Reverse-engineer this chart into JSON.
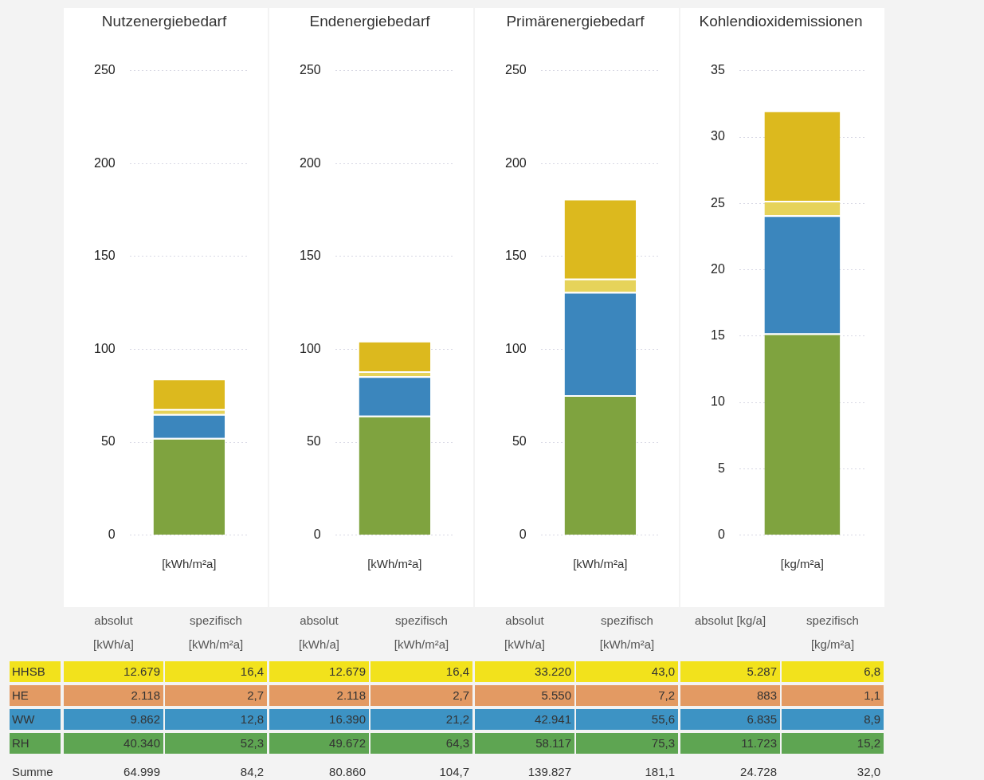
{
  "chart_data": [
    {
      "type": "bar",
      "title": "Nutzenergiebedarf",
      "xlabel": "[kWh/m²a]",
      "categories": [
        null
      ],
      "stacked": true,
      "grid": "y",
      "ylim": [
        0,
        250
      ],
      "yticks": [
        0,
        50,
        100,
        150,
        200,
        250
      ],
      "series": [
        {
          "color": "#7fa33f",
          "values": [
            52.3
          ]
        },
        {
          "color": "#3b86bd",
          "values": [
            12.8
          ]
        },
        {
          "color": "#e6d35a",
          "values": [
            2.7
          ]
        },
        {
          "color": "#dcb91e",
          "values": [
            16.4
          ]
        }
      ]
    },
    {
      "type": "bar",
      "title": "Endenergiebedarf",
      "xlabel": "[kWh/m²a]",
      "categories": [
        null
      ],
      "stacked": true,
      "grid": "y",
      "ylim": [
        0,
        250
      ],
      "yticks": [
        0,
        50,
        100,
        150,
        200,
        250
      ],
      "series": [
        {
          "color": "#7fa33f",
          "values": [
            64.3
          ]
        },
        {
          "color": "#3b86bd",
          "values": [
            21.2
          ]
        },
        {
          "color": "#e6d35a",
          "values": [
            2.7
          ]
        },
        {
          "color": "#dcb91e",
          "values": [
            16.4
          ]
        }
      ]
    },
    {
      "type": "bar",
      "title": "Primärenergiebedarf",
      "xlabel": "[kWh/m²a]",
      "categories": [
        null
      ],
      "stacked": true,
      "grid": "y",
      "ylim": [
        0,
        250
      ],
      "yticks": [
        0,
        50,
        100,
        150,
        200,
        250
      ],
      "series": [
        {
          "color": "#7fa33f",
          "values": [
            75.3
          ]
        },
        {
          "color": "#3b86bd",
          "values": [
            55.6
          ]
        },
        {
          "color": "#e6d35a",
          "values": [
            7.2
          ]
        },
        {
          "color": "#dcb91e",
          "values": [
            43.0
          ]
        }
      ]
    },
    {
      "type": "bar",
      "title": "Kohlendioxidemissionen",
      "xlabel": "[kg/m²a]",
      "categories": [
        null
      ],
      "stacked": true,
      "grid": "y",
      "ylim": [
        0,
        35
      ],
      "yticks": [
        0,
        5,
        10,
        15,
        20,
        25,
        30,
        35
      ],
      "series": [
        {
          "color": "#7fa33f",
          "values": [
            15.2
          ]
        },
        {
          "color": "#3b86bd",
          "values": [
            8.9
          ]
        },
        {
          "color": "#e6d35a",
          "values": [
            1.1
          ]
        },
        {
          "color": "#dcb91e",
          "values": [
            6.8
          ]
        }
      ]
    },
    {
      "type": "other",
      "categories": [
        "absolut [kWh/a]",
        "spezifisch [kWh/m²a]",
        "absolut [kWh/a]",
        "spezifisch [kWh/m²a]",
        "absolut [kWh/a]",
        "spezifisch [kWh/m²a]",
        "absolut [kg/a]",
        "spezifisch [kg/m²a]"
      ],
      "y_categories": [
        "HHSB",
        "HE",
        "WW",
        "RH",
        "Summe"
      ],
      "colors": [
        "#f2e21c",
        "#e39a63",
        "#3d93c4",
        "#5ea552",
        null
      ],
      "cell_labels": [
        [
          "12.679",
          "16,4",
          "12.679",
          "16,4",
          "33.220",
          "43,0",
          "5.287",
          "6,8"
        ],
        [
          "2.118",
          "2,7",
          "2.118",
          "2,7",
          "5.550",
          "7,2",
          "883",
          "1,1"
        ],
        [
          "9.862",
          "12,8",
          "16.390",
          "21,2",
          "42.941",
          "55,6",
          "6.835",
          "8,9"
        ],
        [
          "40.340",
          "52,3",
          "49.672",
          "64,3",
          "58.117",
          "75,3",
          "11.723",
          "15,2"
        ],
        [
          "64.999",
          "84,2",
          "80.860",
          "104,7",
          "139.827",
          "181,1",
          "24.728",
          "32,0"
        ]
      ]
    }
  ]
}
